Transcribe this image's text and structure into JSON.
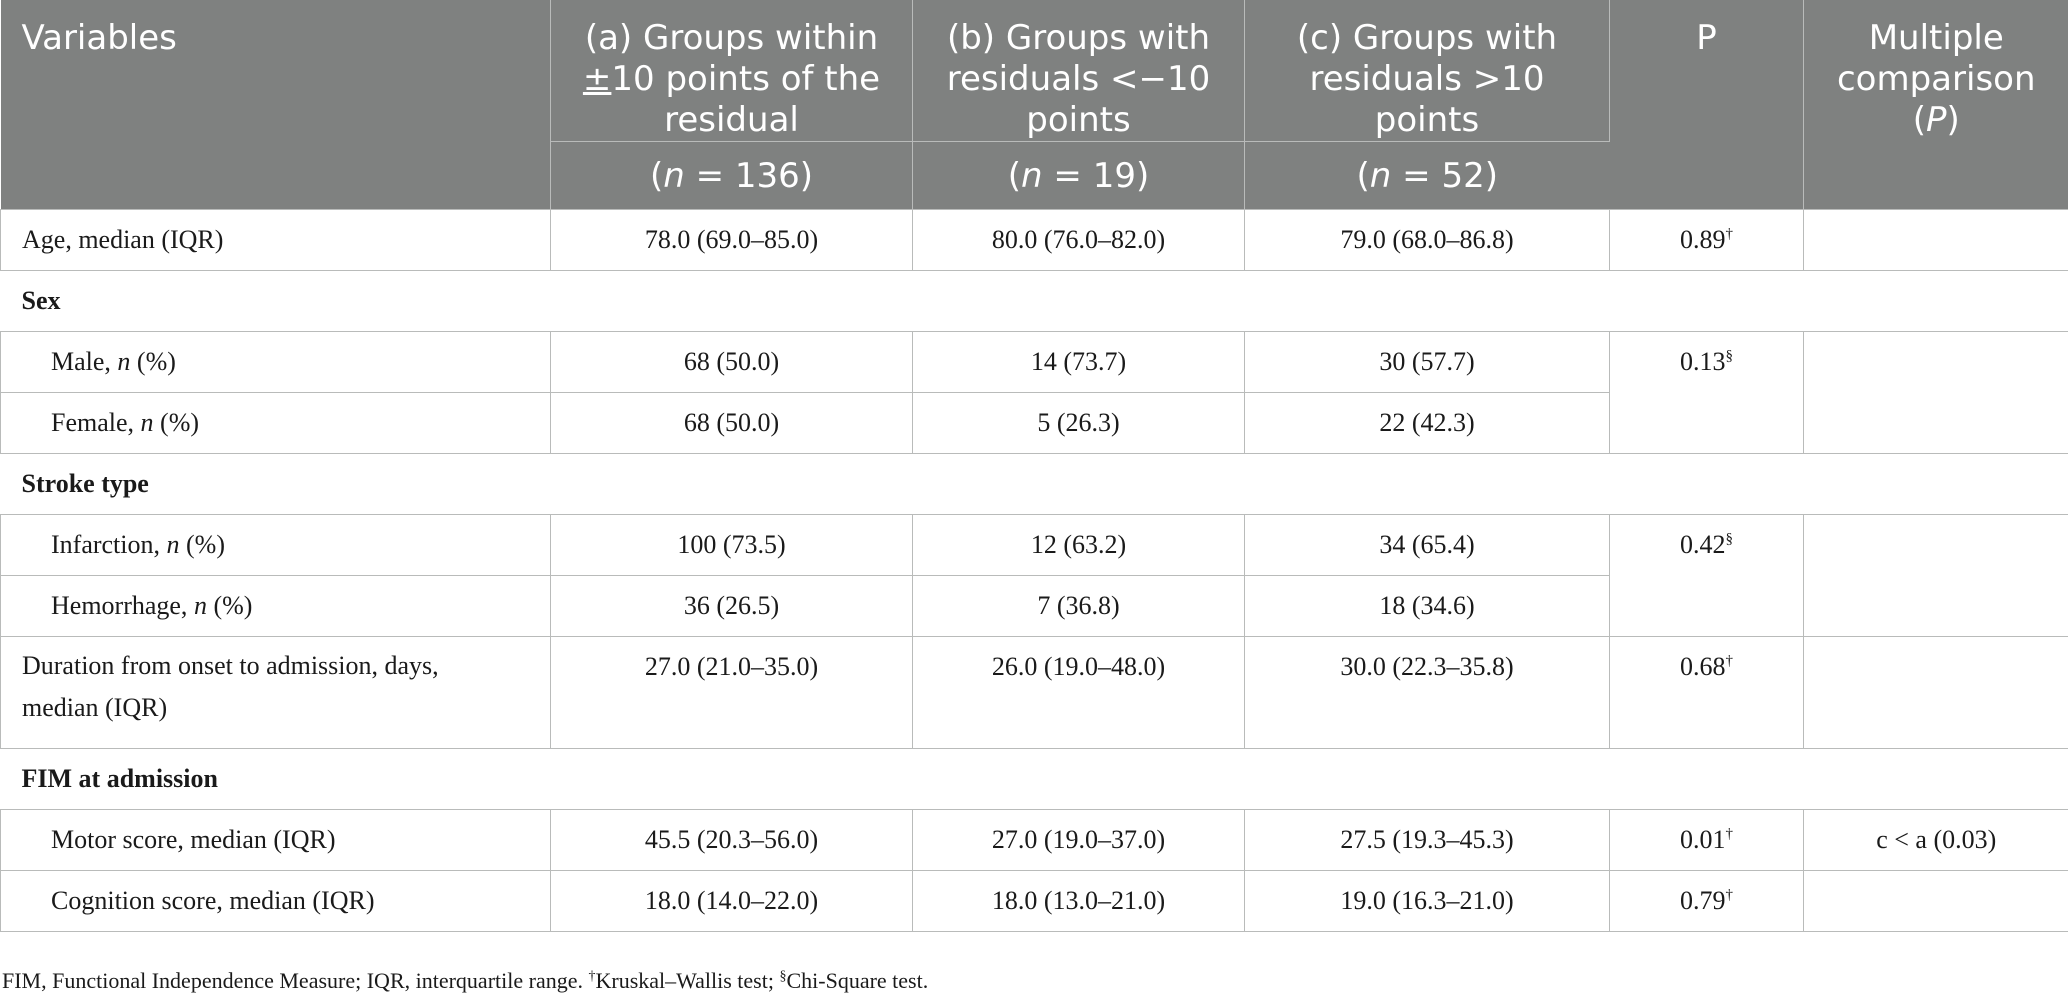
{
  "header": {
    "variables": "Variables",
    "group_a_line1": "(a) Groups within",
    "group_a_pm": "±",
    "group_a_line2_rest": "10 points of the",
    "group_a_line3": "residual",
    "group_b_line1": "(b) Groups with",
    "group_b_line2": "residuals <−10",
    "group_b_line3": "points",
    "group_c_line1": "(c) Groups with",
    "group_c_line2": "residuals >10",
    "group_c_line3": "points",
    "p": "P",
    "mc_line1": "Multiple",
    "mc_line2": "comparison",
    "mc_p": "P",
    "n_symbol": "n",
    "n_a": "136",
    "n_b": "19",
    "n_c": "52"
  },
  "rows": {
    "age": {
      "label": "Age, median (IQR)",
      "a": "78.0 (69.0–85.0)",
      "b": "80.0 (76.0–82.0)",
      "c": "79.0 (68.0–86.8)",
      "p": "0.89",
      "p_mark": "†",
      "mc": ""
    },
    "sex": {
      "label": "Sex"
    },
    "male": {
      "label_pre": "Male, ",
      "label_n": "n",
      "label_post": " (%)",
      "a": "68 (50.0)",
      "b": "14 (73.7)",
      "c": "30 (57.7)"
    },
    "female": {
      "label_pre": "Female, ",
      "label_n": "n",
      "label_post": " (%)",
      "a": "68 (50.0)",
      "b": "5 (26.3)",
      "c": "22 (42.3)"
    },
    "sex_p": "0.13",
    "sex_p_mark": "§",
    "stroke": {
      "label": "Stroke type"
    },
    "infarction": {
      "label_pre": "Infarction, ",
      "label_n": "n",
      "label_post": " (%)",
      "a": "100 (73.5)",
      "b": "12 (63.2)",
      "c": "34 (65.4)"
    },
    "hemorrhage": {
      "label_pre": "Hemorrhage, ",
      "label_n": "n",
      "label_post": " (%)",
      "a": "36 (26.5)",
      "b": "7 (36.8)",
      "c": "18 (34.6)"
    },
    "stroke_p": "0.42",
    "stroke_p_mark": "§",
    "duration": {
      "label_line1": "Duration from onset to admission, days,",
      "label_line2": "median (IQR)",
      "a": "27.0 (21.0–35.0)",
      "b": "26.0 (19.0–48.0)",
      "c": "30.0 (22.3–35.8)",
      "p": "0.68",
      "p_mark": "†",
      "mc": ""
    },
    "fim": {
      "label": "FIM at admission"
    },
    "motor": {
      "label": "Motor score, median (IQR)",
      "a": "45.5 (20.3–56.0)",
      "b": "27.0 (19.0–37.0)",
      "c": "27.5 (19.3–45.3)",
      "p": "0.01",
      "p_mark": "†",
      "mc": "c < a (0.03)"
    },
    "cognition": {
      "label": "Cognition score, median (IQR)",
      "a": "18.0 (14.0–22.0)",
      "b": "18.0 (13.0–21.0)",
      "c": "19.0 (16.3–21.0)",
      "p": "0.79",
      "p_mark": "†",
      "mc": ""
    }
  },
  "footnote": {
    "text": "FIM, Functional Independence Measure; IQR, interquartile range. ",
    "mark1": "†",
    "test1": "Kruskal–Wallis test; ",
    "mark2": "§",
    "test2": "Chi-Square test."
  },
  "colors": {
    "header_bg": "#7f8180",
    "header_text": "#ffffff",
    "grid": "#b9bbba"
  }
}
